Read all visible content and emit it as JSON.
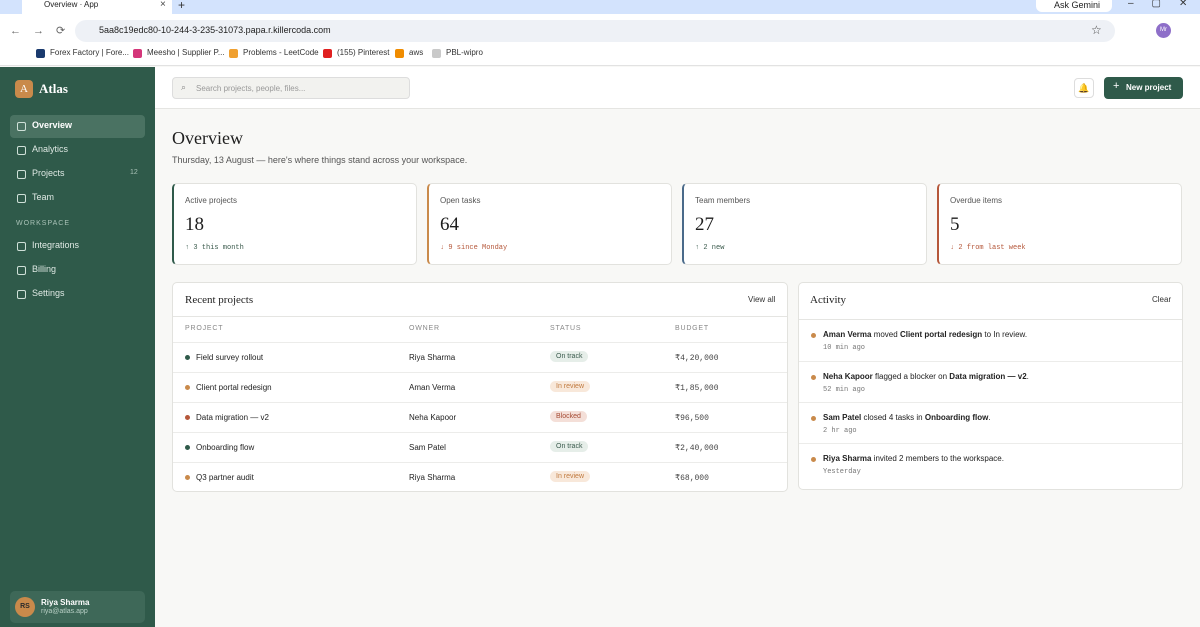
{
  "browser": {
    "tab_title": "Overview · App",
    "ask_gemini": "Ask Gemini",
    "url": "5aa8c19edc80-10-244-3-235-31073.papa.r.killercoda.com",
    "profile": "Mr",
    "bookmarks": [
      "Forex Factory | Fore...",
      "Meesho | Supplier P...",
      "Problems - LeetCode",
      "(155) Pinterest",
      "aws",
      "PBL-wipro"
    ]
  },
  "sidebar": {
    "logo": "A",
    "brand": "Atlas",
    "nav": [
      {
        "label": "Overview"
      },
      {
        "label": "Analytics"
      },
      {
        "label": "Projects",
        "badge": 12
      },
      {
        "label": "Team"
      }
    ],
    "section": "WORKSPACE",
    "workspace_nav": [
      {
        "label": "Integrations"
      },
      {
        "label": "Billing"
      },
      {
        "label": "Settings"
      }
    ],
    "user": {
      "initials": "RS",
      "name": "Riya Sharma",
      "email": "riya@atlas.app"
    }
  },
  "header": {
    "search": "Search projects, people, files...",
    "new_project": "New project"
  },
  "overview": {
    "title": "Overview",
    "subtitle": "Thursday, 13 August — here's where things stand across your workspace."
  },
  "stats": [
    {
      "label": "Active projects",
      "value": 18,
      "delta": "↑ 3 this month",
      "color": "#2f5a4a",
      "delta_color": "#3a5a4c"
    },
    {
      "label": "Open tasks",
      "value": 64,
      "delta": "↓ 9 since Monday",
      "color": "#c98a4b",
      "delta_color": "#b5573a"
    },
    {
      "label": "Team members",
      "value": 27,
      "delta": "↑ 2 new",
      "color": "#4a6a8a",
      "delta_color": "#3a5a4c"
    },
    {
      "label": "Overdue items",
      "value": 5,
      "delta": "↓ 2 from last week",
      "color": "#b5573a",
      "delta_color": "#b5573a"
    }
  ],
  "recent": {
    "title": "Recent projects",
    "view_all": "View all",
    "columns": [
      "PROJECT",
      "OWNER",
      "STATUS",
      "BUDGET"
    ],
    "rows": [
      {
        "project": "Field survey rollout",
        "owner": "Riya Sharma",
        "status": "On track",
        "budget": "₹4,20,000",
        "dot": "#2f5a4a",
        "status_bg": "#e6eee9",
        "status_fg": "#3a5a4c"
      },
      {
        "project": "Client portal redesign",
        "owner": "Aman Verma",
        "status": "In review",
        "budget": "₹1,85,000",
        "dot": "#c98a4b",
        "status_bg": "#f8e8da",
        "status_fg": "#c07a3f"
      },
      {
        "project": "Data migration — v2",
        "owner": "Neha Kapoor",
        "status": "Blocked",
        "budget": "₹96,500",
        "dot": "#b5573a",
        "status_bg": "#f4dfd8",
        "status_fg": "#a54a33"
      },
      {
        "project": "Onboarding flow",
        "owner": "Sam Patel",
        "status": "On track",
        "budget": "₹2,40,000",
        "dot": "#2f5a4a",
        "status_bg": "#e6eee9",
        "status_fg": "#3a5a4c"
      },
      {
        "project": "Q3 partner audit",
        "owner": "Riya Sharma",
        "status": "In review",
        "budget": "₹68,000",
        "dot": "#c98a4b",
        "status_bg": "#f8e8da",
        "status_fg": "#c07a3f"
      }
    ]
  },
  "activity": {
    "title": "Activity",
    "clear": "Clear",
    "items": [
      {
        "parts": [
          "Aman Verma",
          " moved ",
          "Client portal redesign",
          " to In review."
        ],
        "time": "10 min ago"
      },
      {
        "parts": [
          "Neha Kapoor",
          " flagged a blocker on ",
          "Data migration — v2",
          "."
        ],
        "time": "52 min ago"
      },
      {
        "parts": [
          "Sam Patel",
          " closed 4 tasks in ",
          "Onboarding flow",
          "."
        ],
        "time": "2 hr ago"
      },
      {
        "parts": [
          "Riya Sharma",
          " invited 2 members to the workspace."
        ],
        "time": "Yesterday"
      }
    ]
  }
}
